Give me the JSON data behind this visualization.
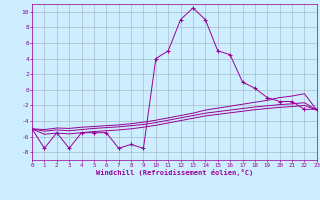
{
  "x": [
    0,
    1,
    2,
    3,
    4,
    5,
    6,
    7,
    8,
    9,
    10,
    11,
    12,
    13,
    14,
    15,
    16,
    17,
    18,
    19,
    20,
    21,
    22,
    23
  ],
  "line1_y": [
    -5,
    -7.5,
    -5.5,
    -7.5,
    -5.5,
    -5.5,
    -5.5,
    -7.5,
    -7,
    -7.5,
    4,
    5,
    9,
    10.5,
    9,
    5,
    4.5,
    1,
    0.2,
    -1,
    -1.5,
    -1.5,
    -2.5,
    -2.5
  ],
  "line2_y": [
    -5,
    -5.1,
    -4.9,
    -4.95,
    -4.8,
    -4.7,
    -4.6,
    -4.5,
    -4.35,
    -4.15,
    -3.9,
    -3.6,
    -3.3,
    -3.0,
    -2.6,
    -2.35,
    -2.1,
    -1.85,
    -1.6,
    -1.35,
    -1.0,
    -0.8,
    -0.5,
    -2.6
  ],
  "line3_y": [
    -5,
    -5.3,
    -5.15,
    -5.25,
    -5.1,
    -4.95,
    -4.85,
    -4.75,
    -4.6,
    -4.45,
    -4.2,
    -3.9,
    -3.6,
    -3.3,
    -3.0,
    -2.8,
    -2.6,
    -2.4,
    -2.2,
    -2.05,
    -1.9,
    -1.8,
    -1.65,
    -2.6
  ],
  "line4_y": [
    -5,
    -5.7,
    -5.55,
    -5.65,
    -5.5,
    -5.35,
    -5.25,
    -5.15,
    -5.0,
    -4.8,
    -4.55,
    -4.25,
    -3.95,
    -3.65,
    -3.35,
    -3.15,
    -2.95,
    -2.75,
    -2.55,
    -2.4,
    -2.25,
    -2.15,
    -2.0,
    -2.6
  ],
  "bg_color": "#cceeff",
  "grid_color": "#aabbcc",
  "line_color": "#990099",
  "ylabel_values": [
    -8,
    -6,
    -4,
    -2,
    0,
    2,
    4,
    6,
    8,
    10
  ],
  "xlabel": "Windchill (Refroidissement éolien,°C)",
  "ylim": [
    -9,
    11
  ],
  "xlim": [
    0,
    23
  ]
}
